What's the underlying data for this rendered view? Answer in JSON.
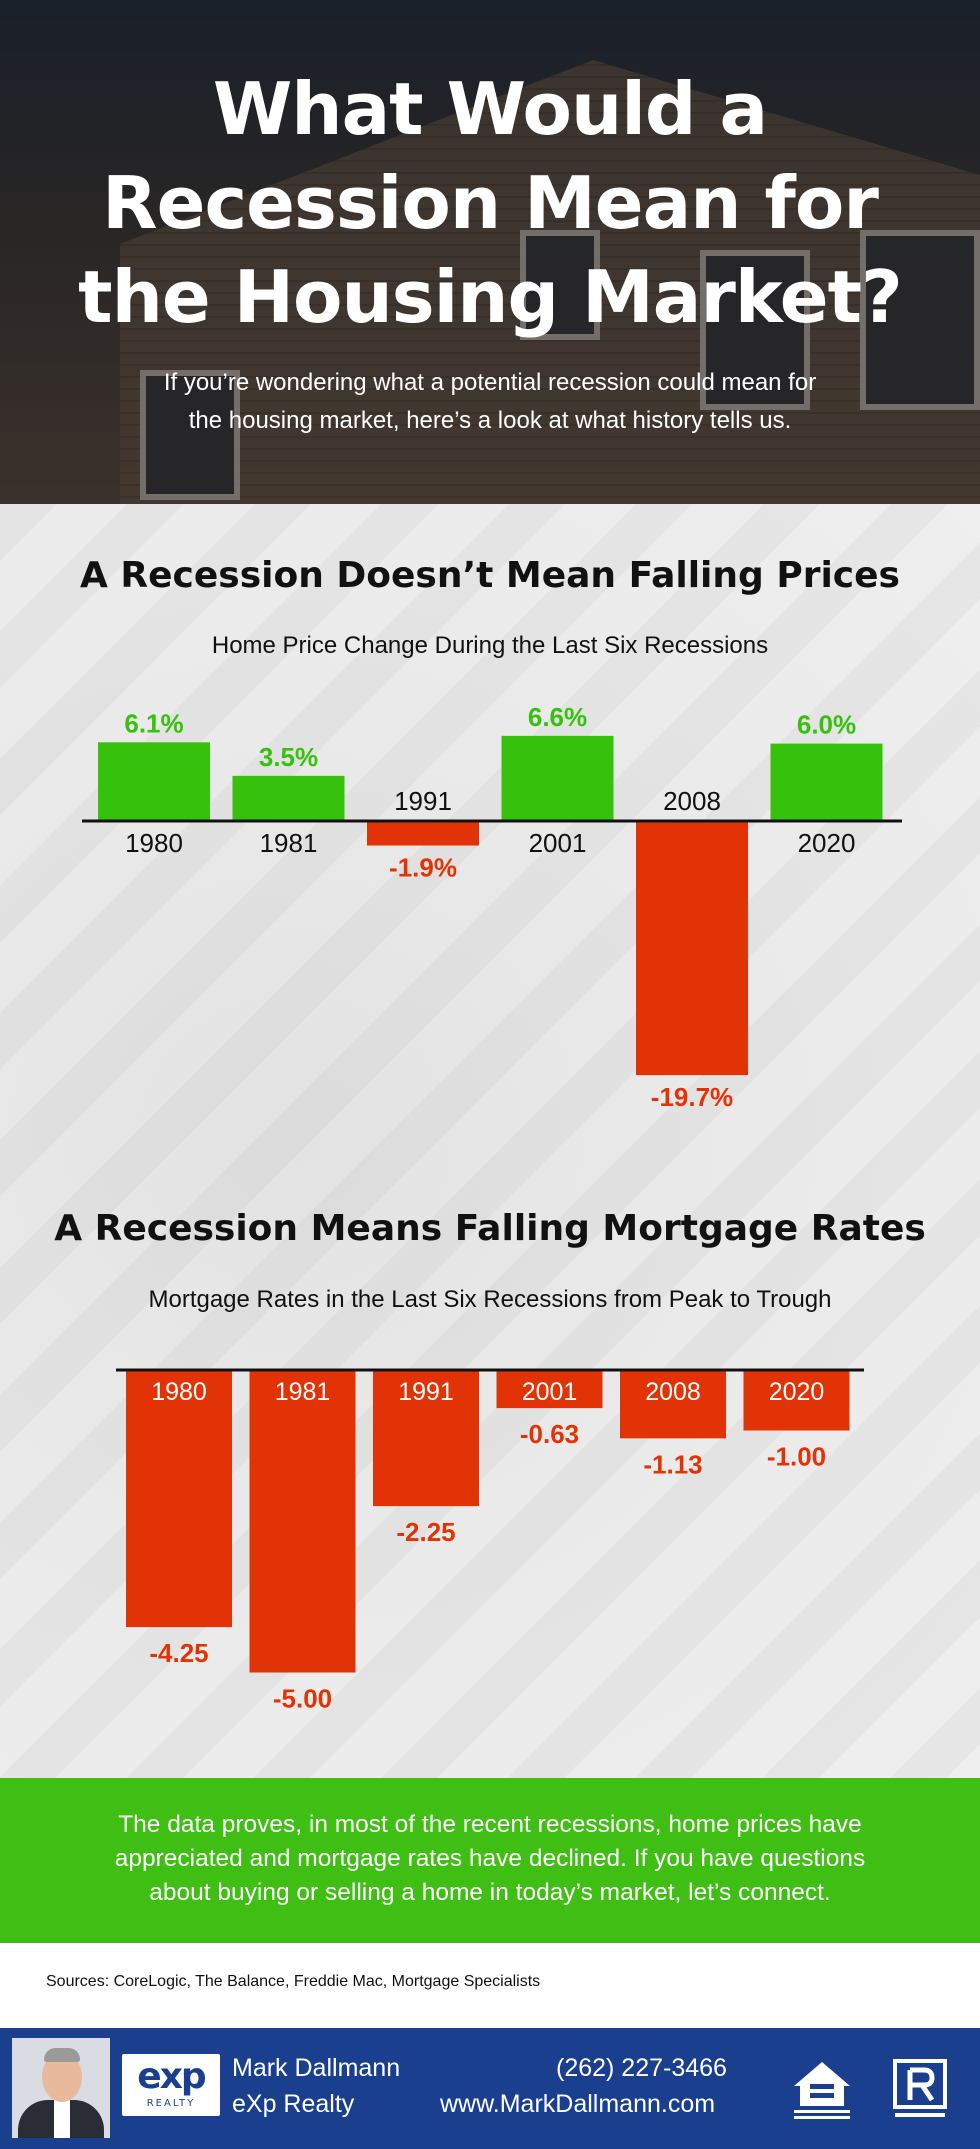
{
  "hero": {
    "title_line1": "What Would a",
    "title_line2": "Recession Mean for",
    "title_line3": "the Housing Market?",
    "subtitle_line1": "If you’re wondering what a potential recession could mean for",
    "subtitle_line2": "the housing market, here’s a look at what history tells us."
  },
  "section1": {
    "title": "A Recession Doesn’t Mean Falling Prices",
    "subtitle": "Home Price Change During the Last Six Recessions"
  },
  "section2": {
    "title": "A Recession Means Falling Mortgage Rates",
    "subtitle": "Mortgage Rates in the Last Six Recessions from Peak to Trough"
  },
  "chart_data": [
    {
      "type": "bar",
      "title": "Home Price Change During the Last Six Recessions",
      "categories": [
        "1980",
        "1981",
        "1991",
        "2001",
        "2008",
        "2020"
      ],
      "values": [
        6.1,
        3.5,
        -1.9,
        6.6,
        -19.7,
        6.0
      ],
      "labels": [
        "6.1%",
        "3.5%",
        "-1.9%",
        "6.6%",
        "-19.7%",
        "6.0%"
      ],
      "unit": "%",
      "positive_color": "#36c20c",
      "negative_color": "#e23306"
    },
    {
      "type": "bar",
      "title": "Mortgage Rates in the Last Six Recessions from Peak to Trough",
      "categories": [
        "1980",
        "1981",
        "1991",
        "2001",
        "2008",
        "2020"
      ],
      "values": [
        -4.25,
        -5.0,
        -2.25,
        -0.63,
        -1.13,
        -1.0
      ],
      "labels": [
        "-4.25",
        "-5.00",
        "-2.25",
        "-0.63",
        "-1.13",
        "-1.00"
      ],
      "negative_color": "#e23306"
    }
  ],
  "banner": {
    "text_line1": "The data proves, in most of the recent recessions, home prices have",
    "text_line2": "appreciated and mortgage rates have declined. If you have questions",
    "text_line3": "about buying or selling a home in today’s market, let’s connect."
  },
  "sources": "Sources: CoreLogic, The Balance, Freddie Mac, Mortgage Specialists",
  "footer": {
    "logo_mark": "exp",
    "logo_sub": "REALTY",
    "agent_name": "Mark Dallmann",
    "company": "eXp Realty",
    "phone": "(262) 227-3466",
    "website": "www.MarkDallmann.com",
    "icons": [
      "equal-housing-opportunity-icon",
      "realtor-icon"
    ]
  },
  "colors": {
    "green": "#3fbf13",
    "red": "#e23306",
    "footer_blue": "#1b3f8f"
  }
}
